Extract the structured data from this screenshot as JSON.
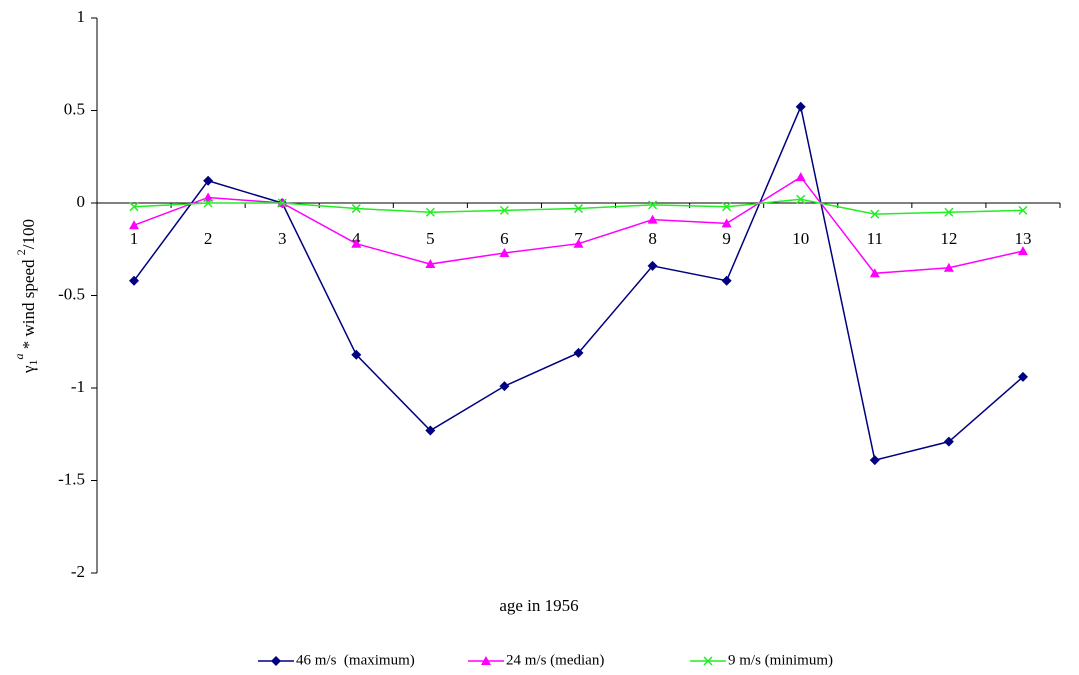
{
  "chart_data": {
    "type": "line",
    "y_label_parts": [
      "γ",
      "1",
      "a",
      " * wind speed ",
      "2",
      "/100"
    ],
    "x_label": "age in 1956",
    "categories": [
      "1",
      "2",
      "3",
      "4",
      "5",
      "6",
      "7",
      "8",
      "9",
      "10",
      "11",
      "12",
      "13"
    ],
    "ylim": [
      -2,
      1
    ],
    "yticks": [
      1,
      0.5,
      0,
      -0.5,
      -1,
      -1.5,
      -2
    ],
    "grid": false,
    "legend": "bottom",
    "series": [
      {
        "name": "46 m/s  (maximum)",
        "color": "#000080",
        "marker": "diamond",
        "values": [
          -0.42,
          0.12,
          0,
          -0.82,
          -1.23,
          -0.99,
          -0.81,
          -0.34,
          -0.42,
          0.52,
          -1.39,
          -1.29,
          -0.94
        ]
      },
      {
        "name": "24 m/s (median)",
        "color": "#ff00ff",
        "marker": "triangle",
        "values": [
          -0.12,
          0.03,
          0,
          -0.22,
          -0.33,
          -0.27,
          -0.22,
          -0.09,
          -0.11,
          0.14,
          -0.38,
          -0.35,
          -0.26
        ]
      },
      {
        "name": "9 m/s (minimum)",
        "color": "#22ee22",
        "marker": "x",
        "values": [
          -0.02,
          0,
          0,
          -0.03,
          -0.05,
          -0.04,
          -0.03,
          -0.01,
          -0.02,
          0.02,
          -0.06,
          -0.05,
          -0.04
        ]
      }
    ]
  }
}
